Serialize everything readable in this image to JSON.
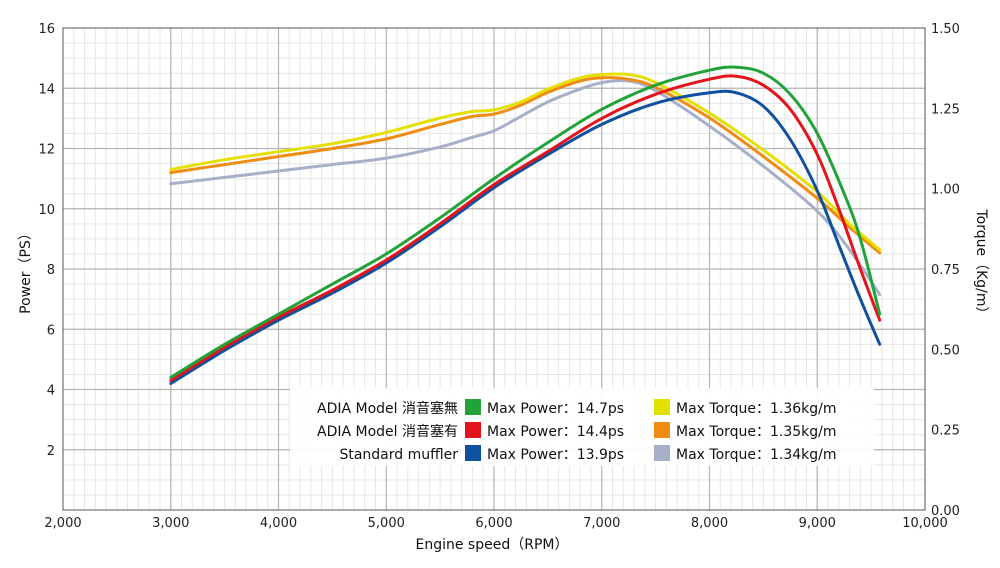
{
  "chart_data": {
    "type": "line",
    "xlabel": "Engine speed（RPM）",
    "ylabel_left": "Power（PS）",
    "ylabel_right": "Torque（Kg/m）",
    "xlim": [
      2000,
      10000
    ],
    "ylim_left": [
      0,
      16
    ],
    "ylim_right": [
      0,
      1.5
    ],
    "x_ticks": [
      "2,000",
      "3,000",
      "4,000",
      "5,000",
      "6,000",
      "7,000",
      "8,000",
      "9,000",
      "10,000"
    ],
    "y_ticks_left": [
      "2",
      "4",
      "6",
      "8",
      "10",
      "12",
      "14",
      "16"
    ],
    "y_ticks_right": [
      "0.00",
      "0.25",
      "0.50",
      "0.75",
      "1.00",
      "1.25",
      "1.50"
    ],
    "grid": true,
    "legend_position": "bottom-center",
    "legend_rows": [
      {
        "label": "ADIA Model 消音塞無",
        "power_text": "Max Power：14.7ps",
        "torque_text": "Max Torque：1.36kg/m",
        "power_color": "#22a33a",
        "torque_color": "#e6e000"
      },
      {
        "label": "ADIA Model 消音塞有",
        "power_text": "Max Power：14.4ps",
        "torque_text": "Max Torque：1.35kg/m",
        "power_color": "#e3141b",
        "torque_color": "#ef8c12"
      },
      {
        "label": "Standard muffler",
        "power_text": "Max Power：13.9ps",
        "torque_text": "Max Torque：1.34kg/m",
        "power_color": "#1050a0",
        "torque_color": "#a7b0c9"
      }
    ],
    "series": [
      {
        "axis": "left",
        "color": "#22a33a",
        "x": [
          3000,
          3500,
          4000,
          4500,
          5000,
          5500,
          6000,
          6500,
          7000,
          7500,
          8000,
          8250,
          8500,
          8750,
          9000,
          9250,
          9400,
          9580
        ],
        "y": [
          4.4,
          5.5,
          6.5,
          7.5,
          8.5,
          9.7,
          11.0,
          12.2,
          13.3,
          14.1,
          14.6,
          14.7,
          14.5,
          13.8,
          12.5,
          10.5,
          9.0,
          6.5
        ]
      },
      {
        "axis": "left",
        "color": "#e3141b",
        "x": [
          3000,
          3500,
          4000,
          4500,
          5000,
          5500,
          6000,
          6500,
          7000,
          7500,
          8000,
          8250,
          8500,
          8750,
          9000,
          9200,
          9400,
          9580
        ],
        "y": [
          4.3,
          5.4,
          6.4,
          7.3,
          8.3,
          9.5,
          10.8,
          11.9,
          13.0,
          13.8,
          14.3,
          14.4,
          14.1,
          13.3,
          11.8,
          10.0,
          8.0,
          6.3
        ]
      },
      {
        "axis": "left",
        "color": "#1050a0",
        "x": [
          3000,
          3500,
          4000,
          4500,
          5000,
          5500,
          6000,
          6500,
          7000,
          7500,
          8000,
          8250,
          8500,
          8750,
          9000,
          9200,
          9400,
          9580
        ],
        "y": [
          4.2,
          5.3,
          6.3,
          7.2,
          8.2,
          9.4,
          10.7,
          11.8,
          12.8,
          13.5,
          13.85,
          13.85,
          13.4,
          12.3,
          10.6,
          8.8,
          7.0,
          5.5
        ]
      },
      {
        "axis": "right",
        "color": "#e6e000",
        "x": [
          3000,
          3500,
          4000,
          4500,
          5000,
          5500,
          5800,
          6000,
          6250,
          6500,
          6800,
          7000,
          7250,
          7500,
          8000,
          8500,
          9000,
          9300,
          9580
        ],
        "y": [
          1.06,
          1.09,
          1.115,
          1.14,
          1.175,
          1.22,
          1.24,
          1.245,
          1.27,
          1.31,
          1.345,
          1.355,
          1.355,
          1.33,
          1.235,
          1.12,
          0.99,
          0.89,
          0.81
        ]
      },
      {
        "axis": "right",
        "color": "#ef8c12",
        "x": [
          3000,
          3500,
          4000,
          4500,
          5000,
          5500,
          5800,
          6000,
          6250,
          6500,
          6800,
          7000,
          7250,
          7500,
          8000,
          8500,
          9000,
          9300,
          9580
        ],
        "y": [
          1.05,
          1.075,
          1.1,
          1.125,
          1.155,
          1.2,
          1.225,
          1.232,
          1.26,
          1.3,
          1.335,
          1.345,
          1.34,
          1.315,
          1.22,
          1.1,
          0.97,
          0.88,
          0.8
        ]
      },
      {
        "axis": "right",
        "color": "#a7b0c9",
        "x": [
          3000,
          3500,
          4000,
          4500,
          5000,
          5500,
          5800,
          6000,
          6250,
          6500,
          6800,
          7000,
          7250,
          7500,
          8000,
          8500,
          9000,
          9300,
          9580
        ],
        "y": [
          1.015,
          1.035,
          1.055,
          1.075,
          1.095,
          1.13,
          1.16,
          1.18,
          1.225,
          1.27,
          1.31,
          1.33,
          1.335,
          1.305,
          1.195,
          1.07,
          0.93,
          0.81,
          0.67
        ]
      }
    ]
  }
}
